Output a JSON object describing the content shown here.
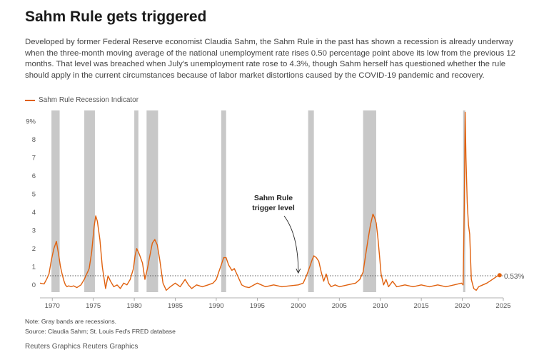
{
  "header": {
    "title": "Sahm Rule gets triggered",
    "subtitle": "Developed by former Federal Reserve economist Claudia Sahm, the Sahm Rule in the past has shown a recession is already underway when the three-month moving average of the national unemployment rate rises 0.50 percentage point above its low from the previous 12 months. That level was breached when July's unemployment rate rose to 4.3%, though Sahm herself has questioned whether the rule should apply in the current circumstances because of labor market distortions caused by the COVID-19 pandemic and recovery."
  },
  "footer": {
    "note": "Note: Gray bands are recessions.",
    "source": "Source: Claudia Sahm; St. Louis Fed's FRED database",
    "credit": "Reuters Graphics Reuters Graphics"
  },
  "colors": {
    "series": "#e0610e",
    "recession": "#c8c8c8",
    "trigger_line": "#555555"
  },
  "chart_data": {
    "type": "line",
    "x_axis": {
      "ticks": [
        1970,
        1975,
        1980,
        1985,
        1990,
        1995,
        2000,
        2005,
        2010,
        2015,
        2020,
        2025
      ],
      "range": [
        1968.5,
        2025
      ]
    },
    "y_axis": {
      "ticks": [
        0,
        1,
        2,
        3,
        4,
        5,
        6,
        7,
        8,
        9
      ],
      "tick_labels": [
        "0",
        "1",
        "2",
        "3",
        "4",
        "5",
        "6",
        "7",
        "8",
        "9%"
      ],
      "range": [
        -0.4,
        9.6
      ]
    },
    "grid": false,
    "legend_position": "top-left",
    "series": [
      {
        "name": "Sahm Rule Recession Indicator",
        "x": [
          1968.5,
          1969.0,
          1969.3,
          1969.6,
          1969.9,
          1970.2,
          1970.5,
          1970.8,
          1971.0,
          1971.2,
          1971.4,
          1971.6,
          1971.8,
          1972.0,
          1972.3,
          1972.6,
          1973.0,
          1973.5,
          1973.9,
          1974.2,
          1974.5,
          1974.8,
          1975.1,
          1975.3,
          1975.5,
          1975.8,
          1976.1,
          1976.5,
          1976.8,
          1977.1,
          1977.5,
          1977.9,
          1978.3,
          1978.7,
          1979.1,
          1979.5,
          1979.9,
          1980.1,
          1980.3,
          1980.6,
          1981.0,
          1981.3,
          1981.6,
          1981.9,
          1982.2,
          1982.5,
          1982.8,
          1983.1,
          1983.5,
          1983.9,
          1984.4,
          1985.0,
          1985.6,
          1986.2,
          1986.6,
          1987.0,
          1987.6,
          1988.3,
          1989.0,
          1989.6,
          1990.0,
          1990.3,
          1990.6,
          1990.9,
          1991.2,
          1991.5,
          1991.9,
          1992.2,
          1992.5,
          1992.8,
          1993.1,
          1993.5,
          1994.0,
          1995.0,
          1996.0,
          1997.0,
          1998.0,
          1999.0,
          2000.0,
          2000.6,
          2001.0,
          2001.4,
          2001.7,
          2001.9,
          2002.2,
          2002.5,
          2002.8,
          2003.1,
          2003.4,
          2003.7,
          2004.0,
          2004.5,
          2005.0,
          2006.0,
          2007.0,
          2007.5,
          2007.9,
          2008.2,
          2008.5,
          2008.8,
          2009.1,
          2009.3,
          2009.5,
          2009.7,
          2009.9,
          2010.1,
          2010.4,
          2010.7,
          2011.0,
          2011.5,
          2012.0,
          2013.0,
          2014.0,
          2015.0,
          2016.0,
          2017.0,
          2018.0,
          2019.0,
          2019.9,
          2020.1,
          2020.25,
          2020.35,
          2020.45,
          2020.6,
          2020.75,
          2020.9,
          2021.1,
          2021.4,
          2021.7,
          2022.0,
          2022.5,
          2023.0,
          2023.5,
          2024.0,
          2024.3,
          2024.55
        ],
        "values": [
          0.1,
          0.05,
          0.3,
          0.6,
          1.4,
          2.0,
          2.4,
          1.6,
          1.0,
          0.6,
          0.25,
          0.0,
          -0.1,
          -0.05,
          -0.1,
          -0.05,
          -0.15,
          0.0,
          0.3,
          0.6,
          0.9,
          1.8,
          3.2,
          3.8,
          3.5,
          2.5,
          1.0,
          -0.2,
          0.5,
          0.2,
          -0.1,
          0.0,
          -0.2,
          0.1,
          0.0,
          0.3,
          0.9,
          1.6,
          2.0,
          1.7,
          1.2,
          0.3,
          0.9,
          1.6,
          2.3,
          2.5,
          2.2,
          1.4,
          0.1,
          -0.3,
          -0.1,
          0.1,
          -0.1,
          0.3,
          0.0,
          -0.2,
          0.0,
          -0.1,
          0.0,
          0.1,
          0.3,
          0.7,
          1.1,
          1.5,
          1.5,
          1.1,
          0.8,
          0.9,
          0.6,
          0.3,
          0.0,
          -0.1,
          -0.15,
          0.1,
          -0.1,
          0.0,
          -0.1,
          -0.05,
          0.0,
          0.1,
          0.5,
          1.0,
          1.4,
          1.6,
          1.5,
          1.3,
          0.7,
          0.2,
          0.6,
          0.1,
          -0.1,
          0.0,
          -0.1,
          0.0,
          0.1,
          0.3,
          0.7,
          1.6,
          2.5,
          3.3,
          3.9,
          3.7,
          3.4,
          2.6,
          1.6,
          0.6,
          0.0,
          0.3,
          -0.1,
          0.2,
          -0.1,
          0.0,
          -0.1,
          0.0,
          -0.1,
          0.0,
          -0.1,
          0.0,
          0.1,
          0.0,
          4.5,
          9.5,
          7.0,
          4.5,
          3.3,
          2.8,
          0.3,
          -0.2,
          -0.3,
          -0.1,
          0.0,
          0.1,
          0.25,
          0.4,
          0.5,
          0.53
        ]
      }
    ],
    "recessions": [
      [
        1969.9,
        1970.9
      ],
      [
        1973.9,
        1975.2
      ],
      [
        1980.0,
        1980.5
      ],
      [
        1981.5,
        1982.9
      ],
      [
        1990.6,
        1991.2
      ],
      [
        2001.2,
        2001.9
      ],
      [
        2007.9,
        2009.5
      ],
      [
        2020.1,
        2020.3
      ]
    ],
    "trigger_level": 0.5,
    "annotations": {
      "trigger": [
        "Sahm Rule",
        "trigger level"
      ],
      "end_value_label": "0.53%"
    }
  }
}
